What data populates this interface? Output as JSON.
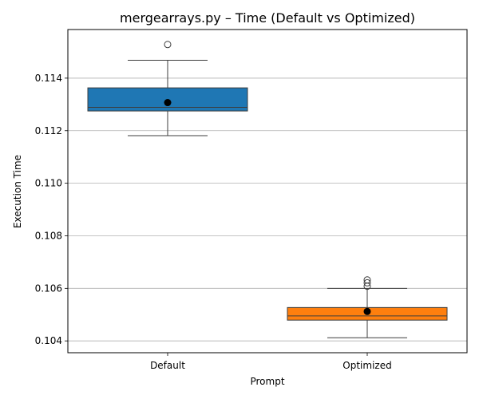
{
  "chart_data": {
    "type": "box",
    "title": "mergearrays.py – Time (Default vs Optimized)",
    "xlabel": "Prompt",
    "ylabel": "Execution Time",
    "ylim": [
      0.10355,
      0.11585
    ],
    "yticks": [
      0.104,
      0.106,
      0.108,
      0.11,
      0.112,
      0.114
    ],
    "ytick_labels": [
      "0.104",
      "0.106",
      "0.108",
      "0.110",
      "0.112",
      "0.114"
    ],
    "grid": "y",
    "categories": [
      "Default",
      "Optimized"
    ],
    "colors": {
      "Default": "#1f77b4",
      "Optimized": "#ff7f0e"
    },
    "boxes": [
      {
        "category": "Default",
        "whisker_low": 0.11181,
        "q1": 0.11275,
        "median": 0.11289,
        "q3": 0.11363,
        "whisker_high": 0.11468,
        "mean": 0.11307,
        "outliers": [
          0.11528
        ]
      },
      {
        "category": "Optimized",
        "whisker_low": 0.10412,
        "q1": 0.10479,
        "median": 0.10495,
        "q3": 0.10527,
        "whisker_high": 0.106,
        "mean": 0.10512,
        "outliers": [
          0.10608,
          0.10621,
          0.10632
        ]
      }
    ]
  }
}
